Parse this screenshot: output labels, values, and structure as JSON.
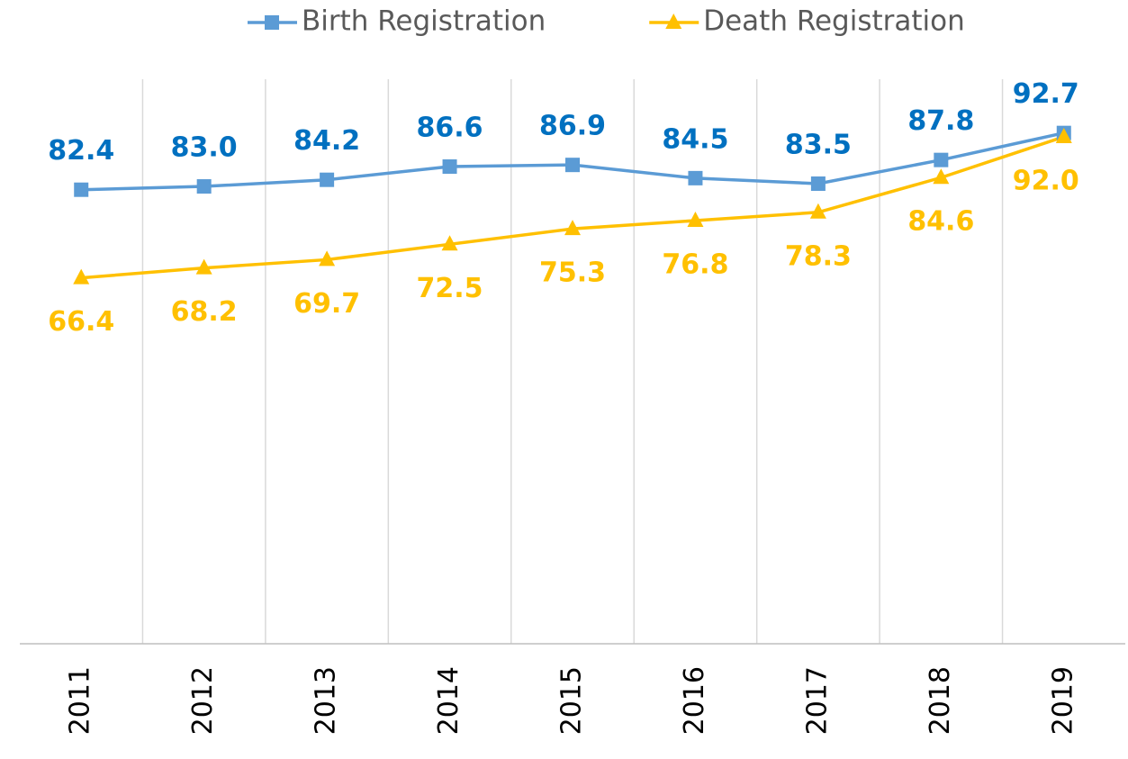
{
  "chart_data": {
    "type": "line",
    "categories": [
      "2011",
      "2012",
      "2013",
      "2014",
      "2015",
      "2016",
      "2017",
      "2018",
      "2019"
    ],
    "series": [
      {
        "name": "Birth Registration",
        "color": "#5b9bd5",
        "label_color": "#0070c0",
        "marker": "square",
        "values": [
          82.4,
          83.0,
          84.2,
          86.6,
          86.9,
          84.5,
          83.5,
          87.8,
          92.7
        ],
        "value_labels": [
          "82.4",
          "83.0",
          "84.2",
          "86.6",
          "86.9",
          "84.5",
          "83.5",
          "87.8",
          "92.7"
        ]
      },
      {
        "name": "Death Registration",
        "color": "#ffc000",
        "label_color": "#ffc000",
        "marker": "triangle",
        "values": [
          66.4,
          68.2,
          69.7,
          72.5,
          75.3,
          76.8,
          78.3,
          84.6,
          92.0
        ],
        "value_labels": [
          "66.4",
          "68.2",
          "69.7",
          "72.5",
          "75.3",
          "76.8",
          "78.3",
          "84.6",
          "92.0"
        ]
      }
    ],
    "ylim": [
      0,
      100
    ],
    "legend": "top"
  }
}
